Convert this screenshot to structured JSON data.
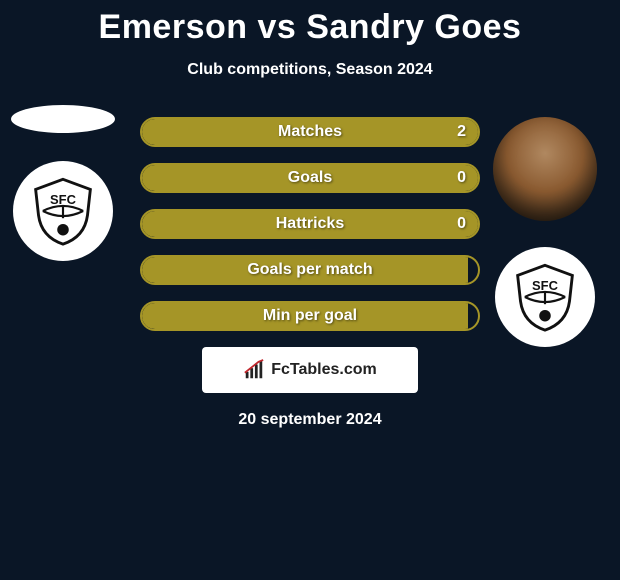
{
  "title": "Emerson vs Sandry Goes",
  "subtitle": "Club competitions, Season 2024",
  "date": "20 september 2024",
  "branding": "FcTables.com",
  "colors": {
    "accent": "#a59527",
    "background": "#0a1626",
    "text": "#ffffff"
  },
  "left_player": {
    "name": "Emerson",
    "club": "Santos FC"
  },
  "right_player": {
    "name": "Sandry Goes",
    "club": "Santos FC"
  },
  "stats": [
    {
      "label": "Matches",
      "value": "2",
      "fill_pct": 100
    },
    {
      "label": "Goals",
      "value": "0",
      "fill_pct": 100
    },
    {
      "label": "Hattricks",
      "value": "0",
      "fill_pct": 100
    },
    {
      "label": "Goals per match",
      "value": "",
      "fill_pct": 97
    },
    {
      "label": "Min per goal",
      "value": "",
      "fill_pct": 97
    }
  ]
}
